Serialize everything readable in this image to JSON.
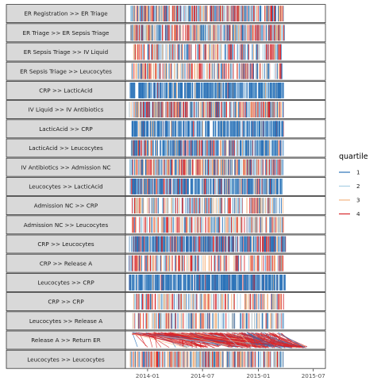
{
  "chart_data": {
    "type": "dotted-chart-facets",
    "x_axis": {
      "type": "date",
      "range": [
        "2013-10-20",
        "2015-08-10"
      ],
      "ticks": [
        "2014-01",
        "2014-07",
        "2015-01",
        "2015-07"
      ]
    },
    "legend": {
      "title": "quartile",
      "placement": "right",
      "items": [
        {
          "label": "1",
          "color": "#2b73b8"
        },
        {
          "label": "2",
          "color": "#a9cfe4"
        },
        {
          "label": "3",
          "color": "#f4b583"
        },
        {
          "label": "4",
          "color": "#d7262a"
        }
      ]
    },
    "panels": [
      {
        "label": "ER Registration >> ER Triage",
        "start": "2013-11-05",
        "end": "2015-03-28",
        "mix": [
          0.25,
          0.25,
          0.25,
          0.25
        ],
        "density": 1.0,
        "mode": "bars"
      },
      {
        "label": "ER Triage >> ER Sepsis Triage",
        "start": "2013-11-05",
        "end": "2015-03-28",
        "mix": [
          0.25,
          0.25,
          0.25,
          0.25
        ],
        "density": 1.0,
        "mode": "bars"
      },
      {
        "label": "ER Sepsis Triage >> IV Liquid",
        "start": "2013-11-10",
        "end": "2015-03-25",
        "mix": [
          0.25,
          0.25,
          0.25,
          0.25
        ],
        "density": 0.55,
        "mode": "bars"
      },
      {
        "label": "ER Sepsis Triage >> Leucocytes",
        "start": "2013-11-10",
        "end": "2015-03-25",
        "mix": [
          0.2,
          0.25,
          0.3,
          0.25
        ],
        "density": 0.55,
        "mode": "bars"
      },
      {
        "label": "CRP >> LacticAcid",
        "start": "2013-11-01",
        "end": "2015-03-25",
        "mix": [
          0.85,
          0.1,
          0.03,
          0.02
        ],
        "density": 1.0,
        "mode": "bars"
      },
      {
        "label": "IV Liquid >> IV Antibiotics",
        "start": "2013-11-01",
        "end": "2015-03-25",
        "mix": [
          0.25,
          0.25,
          0.25,
          0.25
        ],
        "density": 1.0,
        "mode": "bars"
      },
      {
        "label": "LacticAcid >> CRP",
        "start": "2013-11-10",
        "end": "2015-03-25",
        "mix": [
          0.75,
          0.12,
          0.06,
          0.07
        ],
        "density": 0.9,
        "mode": "bars"
      },
      {
        "label": "LacticAcid >> Leucocytes",
        "start": "2013-11-05",
        "end": "2015-03-25",
        "mix": [
          0.6,
          0.15,
          0.1,
          0.15
        ],
        "density": 1.0,
        "mode": "bars"
      },
      {
        "label": "IV Antibiotics >> Admission NC",
        "start": "2013-11-01",
        "end": "2015-03-25",
        "mix": [
          0.25,
          0.25,
          0.25,
          0.25
        ],
        "density": 1.0,
        "mode": "bars"
      },
      {
        "label": "Leucocytes >> LacticAcid",
        "start": "2013-11-05",
        "end": "2015-03-25",
        "mix": [
          0.65,
          0.15,
          0.08,
          0.12
        ],
        "density": 1.0,
        "mode": "bars"
      },
      {
        "label": "Admission NC >> CRP",
        "start": "2013-11-10",
        "end": "2015-03-25",
        "mix": [
          0.2,
          0.25,
          0.3,
          0.25
        ],
        "density": 0.6,
        "mode": "bars"
      },
      {
        "label": "Admission NC >> Leucocytes",
        "start": "2013-11-10",
        "end": "2015-03-25",
        "mix": [
          0.2,
          0.25,
          0.3,
          0.25
        ],
        "density": 0.6,
        "mode": "bars"
      },
      {
        "label": "CRP >> Leucocytes",
        "start": "2013-11-01",
        "end": "2015-04-01",
        "mix": [
          0.7,
          0.07,
          0.03,
          0.2
        ],
        "density": 1.0,
        "mode": "bars"
      },
      {
        "label": "CRP >> Release A",
        "start": "2013-11-01",
        "end": "2015-03-25",
        "mix": [
          0.15,
          0.2,
          0.3,
          0.35
        ],
        "density": 0.5,
        "mode": "bars"
      },
      {
        "label": "Leucocytes >> CRP",
        "start": "2013-11-01",
        "end": "2015-04-01",
        "mix": [
          0.88,
          0.05,
          0.02,
          0.05
        ],
        "density": 1.0,
        "mode": "bars"
      },
      {
        "label": "CRP >> CRP",
        "start": "2013-11-15",
        "end": "2015-03-25",
        "mix": [
          0.2,
          0.25,
          0.3,
          0.25
        ],
        "density": 0.5,
        "mode": "bars"
      },
      {
        "label": "Leucocytes >> Release A",
        "start": "2013-11-10",
        "end": "2015-03-25",
        "mix": [
          0.2,
          0.3,
          0.3,
          0.2
        ],
        "density": 0.5,
        "mode": "bars"
      },
      {
        "label": "Release A >> Return ER",
        "start": "2013-11-10",
        "end": "2015-06-15",
        "mix": [
          0.15,
          0.1,
          0.05,
          0.7
        ],
        "density": 1.0,
        "mode": "spans"
      },
      {
        "label": "Leucocytes >> Leucocytes",
        "start": "2013-11-05",
        "end": "2015-03-25",
        "mix": [
          0.2,
          0.25,
          0.3,
          0.25
        ],
        "density": 0.9,
        "mode": "bars"
      }
    ]
  }
}
